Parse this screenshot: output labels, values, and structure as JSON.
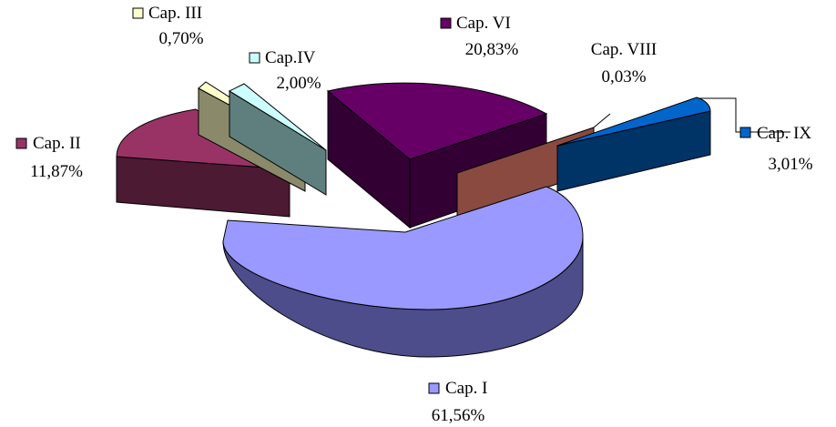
{
  "chart_data": {
    "type": "pie",
    "style": "3d-exploded",
    "title": "",
    "legend_placement": "inline-labels",
    "slices": [
      {
        "label": "Cap. I",
        "value_text": "61,56%",
        "value": 61.56,
        "color": "#9999ff",
        "side_color": "#4d4d8c"
      },
      {
        "label": "Cap. II",
        "value_text": "11,87%",
        "value": 11.87,
        "color": "#993366",
        "side_color": "#4d1a33"
      },
      {
        "label": "Cap. III",
        "value_text": "0,70%",
        "value": 0.7,
        "color": "#ffffcc",
        "side_color": "#7f7f5a"
      },
      {
        "label": "Cap.IV",
        "value_text": "2,00%",
        "value": 2.0,
        "color": "#ccffff",
        "side_color": "#5f7f7f"
      },
      {
        "label": "Cap. VI",
        "value_text": "20,83%",
        "value": 20.83,
        "color": "#660066",
        "side_color": "#330033"
      },
      {
        "label": "Cap. VIII",
        "value_text": "0,03%",
        "value": 0.03,
        "color": "#ff8080",
        "side_color": "#8a4a40"
      },
      {
        "label": "Cap. IX",
        "value_text": "3,01%",
        "value": 3.01,
        "color": "#0066cc",
        "side_color": "#003366"
      }
    ]
  }
}
